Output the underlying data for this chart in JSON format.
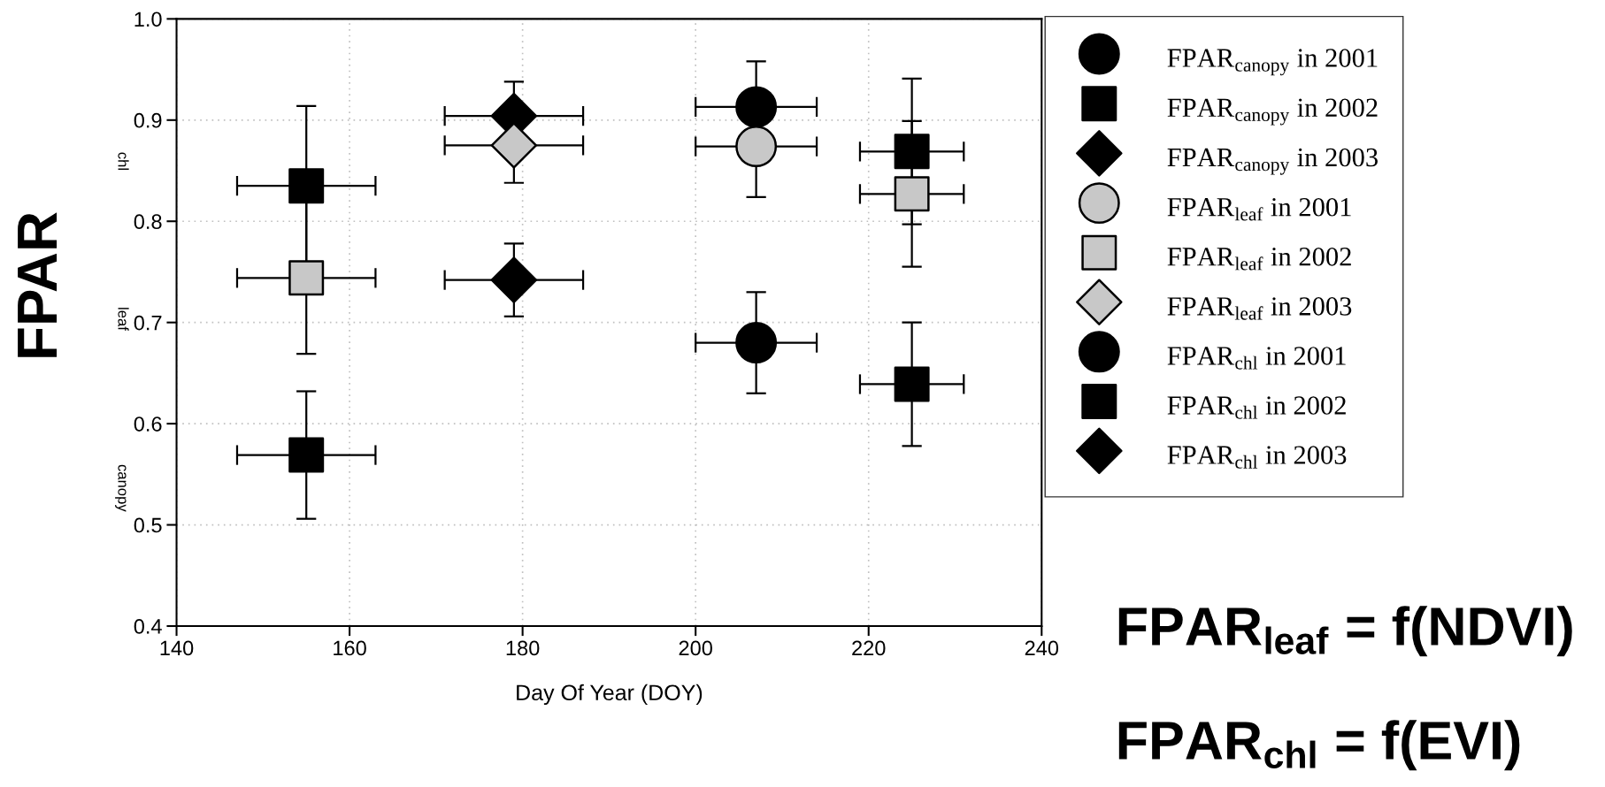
{
  "chart_data": {
    "type": "scatter",
    "xlabel": "Day Of Year (DOY)",
    "ylabel": "FPAR",
    "xlim": [
      140,
      240
    ],
    "xticks": [
      140,
      160,
      180,
      200,
      220,
      240
    ],
    "ylim": [
      0.4,
      1.0
    ],
    "yticks": [
      {
        "value": 0.4,
        "label": "0.4"
      },
      {
        "value": 0.5,
        "label": "0.5"
      },
      {
        "value": 0.6,
        "label": "0.6"
      },
      {
        "value": 0.7,
        "label": "0.7"
      },
      {
        "value": 0.8,
        "label": "0.8"
      },
      {
        "value": 0.9,
        "label": "0.9"
      },
      {
        "value": 1.0,
        "label": "1.0"
      }
    ],
    "grid": true,
    "legend": "right",
    "series": [
      {
        "name": "FPAR$_{canopy}$ in 2001",
        "color": "#000000",
        "marker": "circle",
        "x": [
          207
        ],
        "values": [
          0.913
        ],
        "errors": [
          0.045
        ],
        "xerrors": [
          7
        ]
      },
      {
        "name": "FPAR$_{canopy}$ in 2002",
        "color": "#000000",
        "marker": "square",
        "x": [
          155,
          225
        ],
        "values": [
          0.835,
          0.869
        ],
        "errors": [
          0.079,
          0.072
        ],
        "xerrors": [
          8,
          6
        ]
      },
      {
        "name": "FPAR$_{canopy}$ in 2003",
        "color": "#000000",
        "marker": "diamond",
        "x": [
          179
        ],
        "values": [
          0.904
        ],
        "errors": [
          0.034
        ],
        "xerrors": [
          8
        ]
      },
      {
        "name": "FPAR$_{leaf}$ in 2001",
        "color": "#c8c8c8",
        "marker": "circle",
        "x": [
          207
        ],
        "values": [
          0.874
        ],
        "errors": [
          0.05
        ],
        "xerrors": [
          7
        ]
      },
      {
        "name": "FPAR$_{leaf}$ in 2002",
        "color": "#c8c8c8",
        "marker": "square",
        "x": [
          155,
          225
        ],
        "values": [
          0.744,
          0.827
        ],
        "errors": [
          0.075,
          0.072
        ],
        "xerrors": [
          8,
          6
        ]
      },
      {
        "name": "FPAR$_{leaf}$ in 2003",
        "color": "#c8c8c8",
        "marker": "diamond",
        "x": [
          179
        ],
        "values": [
          0.875
        ],
        "errors": [
          0.037
        ],
        "xerrors": [
          8
        ]
      },
      {
        "name": "FPAR$_{chl}$ in 2001",
        "color": "#000000",
        "marker": "circle",
        "x": [
          207
        ],
        "values": [
          0.68
        ],
        "errors": [
          0.05
        ],
        "xerrors": [
          7
        ]
      },
      {
        "name": "FPAR$_{chl}$ in 2002",
        "color": "#000000",
        "marker": "square",
        "x": [
          155,
          225
        ],
        "values": [
          0.569,
          0.639
        ],
        "errors": [
          0.063,
          0.061
        ],
        "xerrors": [
          8,
          6
        ]
      },
      {
        "name": "FPAR$_{chl}$ in 2003",
        "color": "#000000",
        "marker": "diamond",
        "x": [
          179
        ],
        "values": [
          0.742
        ],
        "errors": [
          0.036
        ],
        "xerrors": [
          8
        ]
      }
    ],
    "annotations": [
      "chl",
      "leaf",
      "canopy",
      "FPAR$_{leaf}$ = f(NDVI)",
      "FPAR$_{chl}$ = f(EVI)"
    ]
  }
}
